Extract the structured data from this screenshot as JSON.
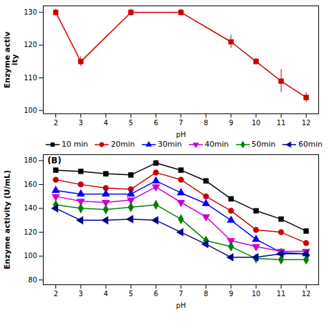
{
  "chart_data": [
    {
      "type": "line",
      "xlabel": "pH",
      "ylabel": "Enzyme activ\nity",
      "x": [
        2,
        3,
        5,
        7,
        9,
        10,
        11,
        12
      ],
      "values": [
        130,
        115,
        130,
        130,
        121,
        115,
        109,
        104
      ],
      "yerr": [
        1.0,
        1.5,
        1.0,
        1.0,
        2.0,
        1.0,
        3.5,
        1.5
      ],
      "color": "#cc0000",
      "marker": "square",
      "xlim": [
        1.5,
        12.5
      ],
      "ylim": [
        99,
        132
      ],
      "xticks": [
        2,
        3,
        4,
        5,
        6,
        7,
        8,
        9,
        10,
        11,
        12
      ],
      "yticks": [
        100,
        110,
        120,
        130
      ],
      "grid": false
    },
    {
      "type": "line",
      "xlabel": "pH",
      "ylabel": "Enzyme activity (U/mL)",
      "annotation": "(B)",
      "legend": "upper right",
      "grid": false,
      "x": [
        2,
        3,
        4,
        5,
        6,
        7,
        8,
        9,
        10,
        11,
        12
      ],
      "xlim": [
        1.5,
        12.5
      ],
      "ylim": [
        76,
        185
      ],
      "xticks": [
        2,
        3,
        4,
        5,
        6,
        7,
        8,
        9,
        10,
        11,
        12
      ],
      "yticks": [
        80,
        100,
        120,
        140,
        160,
        180
      ],
      "series": [
        {
          "name": "10 min",
          "color": "black",
          "marker": "square",
          "values": [
            172,
            171,
            169,
            168,
            178,
            172,
            163,
            148,
            138,
            131,
            121
          ],
          "yerr": [
            1.5,
            1.5,
            1.5,
            1.5,
            2.0,
            1.5,
            1.5,
            1.5,
            1.5,
            1.5,
            1.5
          ]
        },
        {
          "name": "20min",
          "color": "#cc0000",
          "marker": "circle",
          "values": [
            164,
            160,
            157,
            156,
            170,
            164,
            150,
            138,
            122,
            120,
            111
          ],
          "yerr": [
            1.5,
            1.5,
            1.5,
            1.5,
            2.0,
            1.5,
            1.5,
            1.5,
            1.5,
            1.5,
            1.5
          ]
        },
        {
          "name": "30min",
          "color": "blue",
          "marker": "triangle-up",
          "values": [
            155,
            152,
            152,
            152,
            163,
            153,
            144,
            130,
            114,
            103,
            102
          ],
          "yerr": [
            1.5,
            1.5,
            1.5,
            1.5,
            2.0,
            1.5,
            1.5,
            1.5,
            1.5,
            1.5,
            1.5
          ]
        },
        {
          "name": "40min",
          "color": "#cc00cc",
          "marker": "triangle-down",
          "values": [
            150,
            146,
            145,
            147,
            158,
            145,
            133,
            113,
            108,
            104,
            104
          ],
          "yerr": [
            1.5,
            1.5,
            1.5,
            1.5,
            2.0,
            1.5,
            1.5,
            1.5,
            1.5,
            1.5,
            1.5
          ]
        },
        {
          "name": "50min",
          "color": "green",
          "marker": "diamond",
          "values": [
            143,
            140,
            139,
            141,
            143,
            131,
            113,
            108,
            98,
            97,
            97
          ],
          "yerr": [
            1.5,
            1.5,
            1.5,
            1.5,
            2.0,
            1.5,
            1.5,
            1.5,
            1.5,
            1.5,
            1.5
          ]
        },
        {
          "name": "60min",
          "color": "#000088",
          "marker": "triangle-left",
          "values": [
            140,
            130,
            130,
            131,
            130,
            120,
            110,
            99,
            99,
            102,
            102
          ],
          "yerr": [
            1.5,
            1.5,
            1.5,
            1.5,
            2.0,
            1.5,
            1.5,
            1.5,
            1.5,
            1.5,
            1.5
          ]
        }
      ]
    }
  ]
}
